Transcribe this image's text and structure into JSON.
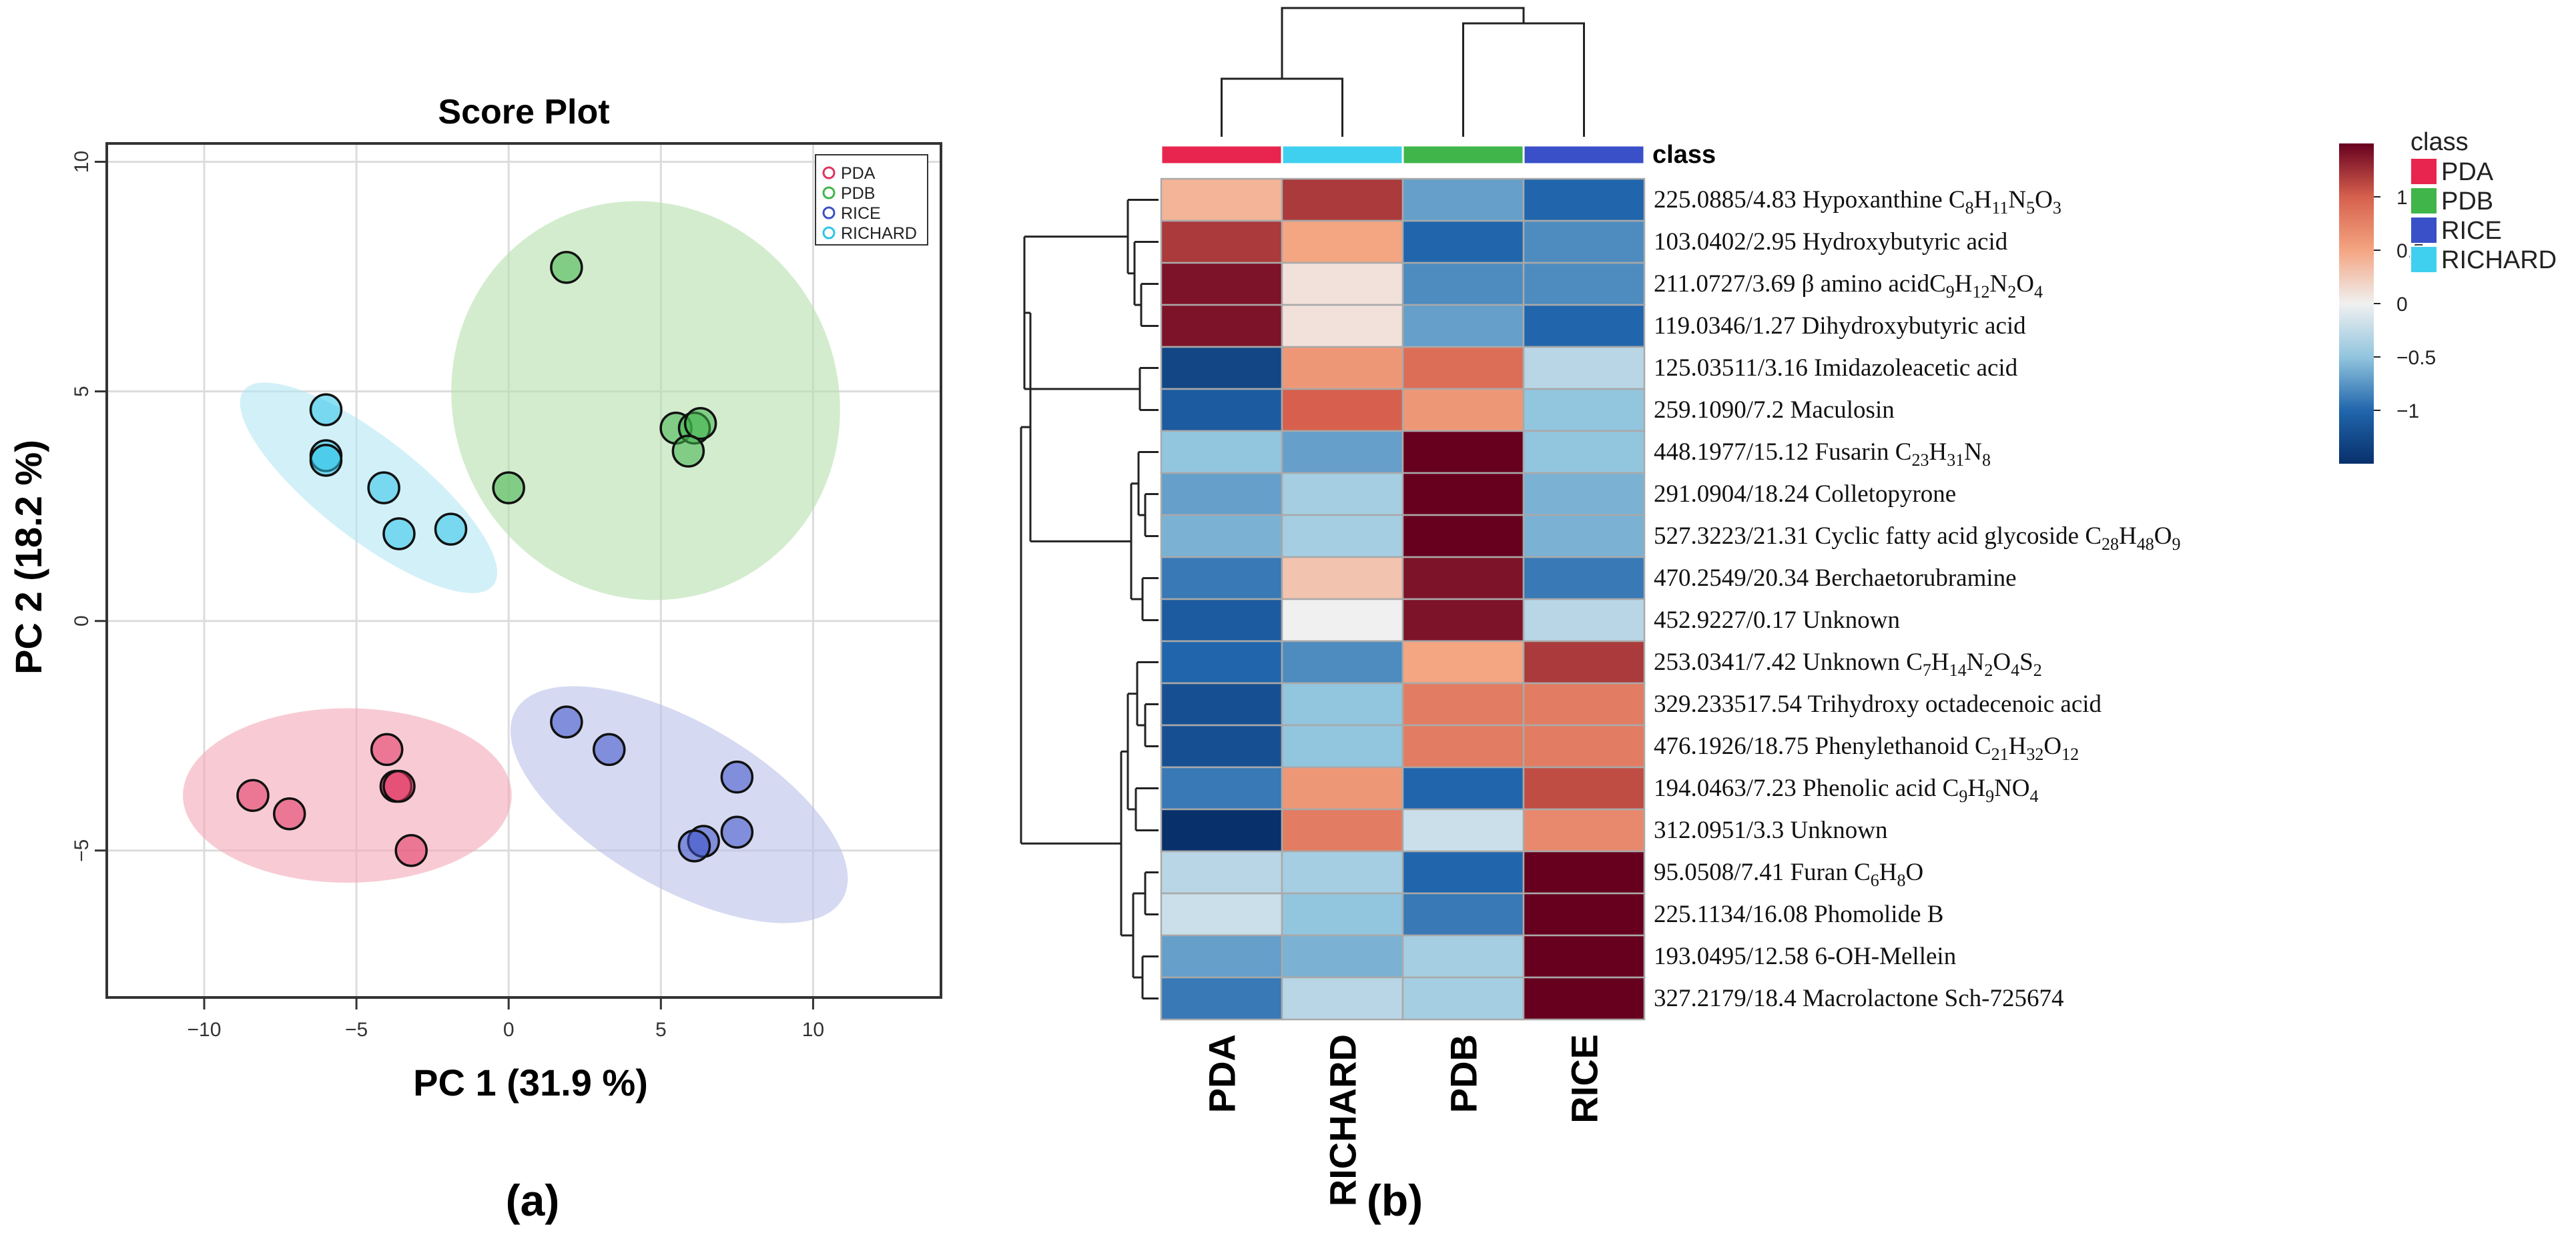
{
  "panel_labels": {
    "a": "(a)",
    "b": "(b)"
  },
  "chart_data": [
    {
      "type": "scatter",
      "title": "Score Plot",
      "xlabel": "PC 1 (31.9 %)",
      "ylabel": "PC 2 (18.2 %)",
      "xlim": [
        -13.2,
        14.2
      ],
      "ylim": [
        -8.2,
        10.4
      ],
      "xticks": [
        -10,
        -5,
        0,
        5,
        10
      ],
      "yticks": [
        -5,
        0,
        5,
        10
      ],
      "tick_labels": {
        "x": [
          "−10",
          "−5",
          "0",
          "5",
          "10"
        ],
        "y": [
          "−5",
          "0",
          "5",
          "10"
        ]
      },
      "grid": true,
      "legend_position": "top-right",
      "series": [
        {
          "name": "PDA",
          "color": "#e0335e",
          "fill": "#f4a8b7",
          "points": [
            [
              -8.4,
              -3.8
            ],
            [
              -7.2,
              -4.2
            ],
            [
              -4.0,
              -2.8
            ],
            [
              -3.7,
              -3.6
            ],
            [
              -3.6,
              -3.6
            ],
            [
              -3.2,
              -5.0
            ]
          ],
          "ellipse": {
            "cx": -5.3,
            "cy": -3.8,
            "rx": 5.4,
            "ry": 1.9,
            "angle": 0
          }
        },
        {
          "name": "PDB",
          "color": "#3fb54a",
          "fill": "#b6dfae",
          "points": [
            [
              1.9,
              7.7
            ],
            [
              5.5,
              4.2
            ],
            [
              6.1,
              4.2
            ],
            [
              6.3,
              4.3
            ],
            [
              5.9,
              3.7
            ],
            [
              0.0,
              2.9
            ]
          ],
          "ellipse": {
            "cx": 4.5,
            "cy": 4.8,
            "rx": 6.3,
            "ry": 4.4,
            "angle": 30
          }
        },
        {
          "name": "RICE",
          "color": "#3a50c8",
          "fill": "#b9bfe8",
          "points": [
            [
              1.9,
              -2.2
            ],
            [
              3.3,
              -2.8
            ],
            [
              7.5,
              -3.4
            ],
            [
              7.5,
              -4.6
            ],
            [
              6.4,
              -4.8
            ],
            [
              6.1,
              -4.9
            ]
          ],
          "ellipse": {
            "cx": 5.6,
            "cy": -4.0,
            "rx": 6.2,
            "ry": 1.8,
            "angle": -30
          }
        },
        {
          "name": "RICHARD",
          "color": "#2cc4e8",
          "fill": "#b4e6f3",
          "points": [
            [
              -6.0,
              4.6
            ],
            [
              -6.0,
              3.6
            ],
            [
              -6.0,
              3.5
            ],
            [
              -4.1,
              2.9
            ],
            [
              -3.6,
              1.9
            ],
            [
              -1.9,
              2.0
            ]
          ],
          "ellipse": {
            "cx": -4.6,
            "cy": 2.9,
            "rx": 5.2,
            "ry": 1.1,
            "angle": -38
          }
        }
      ]
    },
    {
      "type": "heatmap",
      "column_labels": [
        "PDA",
        "RICHARD",
        "PDB",
        "RICE"
      ],
      "class_header": "class",
      "class_colors": [
        "#e8254e",
        "#3fd0f0",
        "#3fb54a",
        "#3a50c8"
      ],
      "row_labels": [
        {
          "text": "225.0885/4.83 Hypoxanthine C",
          "sub": [
            [
              "8",
              "H"
            ],
            [
              "11",
              "N"
            ],
            [
              "5",
              "O"
            ],
            [
              "3",
              ""
            ]
          ]
        },
        {
          "text": "103.0402/2.95 Hydroxybutyric acid",
          "sub": []
        },
        {
          "text": "211.0727/3.69 β amino acidC",
          "sub": [
            [
              "9",
              "H"
            ],
            [
              "12",
              "N"
            ],
            [
              "2",
              "O"
            ],
            [
              "4",
              ""
            ]
          ]
        },
        {
          "text": "119.0346/1.27 Dihydroxybutyric acid",
          "sub": []
        },
        {
          "text": "125.03511/3.16 Imidazoleacetic acid",
          "sub": []
        },
        {
          "text": "259.1090/7.2 Maculosin",
          "sub": []
        },
        {
          "text": "448.1977/15.12 Fusarin C",
          "sub": [
            [
              "23",
              "H"
            ],
            [
              "31",
              "N"
            ],
            [
              "8",
              ""
            ]
          ]
        },
        {
          "text": "291.0904/18.24 Colletopyrone",
          "sub": []
        },
        {
          "text": "527.3223/21.31 Cyclic fatty acid glycoside C",
          "sub": [
            [
              "28",
              "H"
            ],
            [
              "48",
              "O"
            ],
            [
              "9",
              ""
            ]
          ]
        },
        {
          "text": "470.2549/20.34 Berchaetorubramine",
          "sub": []
        },
        {
          "text": "452.9227/0.17 Unknown",
          "sub": []
        },
        {
          "text": "253.0341/7.42 Unknown C",
          "sub": [
            [
              "7",
              "H"
            ],
            [
              "14",
              "N"
            ],
            [
              "2",
              "O"
            ],
            [
              "4",
              "S"
            ],
            [
              "2",
              ""
            ]
          ]
        },
        {
          "text": "329.233517.54 Trihydroxy octadecenoic acid",
          "sub": []
        },
        {
          "text": "476.1926/18.75 Phenylethanoid C",
          "sub": [
            [
              "21",
              "H"
            ],
            [
              "32",
              "O"
            ],
            [
              "12",
              ""
            ]
          ]
        },
        {
          "text": "194.0463/7.23 Phenolic acid C",
          "sub": [
            [
              "9",
              "H"
            ],
            [
              "9",
              "NO"
            ],
            [
              "4",
              ""
            ]
          ]
        },
        {
          "text": "312.0951/3.3 Unknown",
          "sub": []
        },
        {
          "text": "95.0508/7.41 Furan C",
          "sub": [
            [
              "6",
              "H"
            ],
            [
              "8",
              "O"
            ]
          ]
        },
        {
          "text": "225.1134/16.08 Phomolide B",
          "sub": []
        },
        {
          "text": "193.0495/12.58 6-OH-Mellein",
          "sub": []
        },
        {
          "text": "327.2179/18.4 Macrolactone Sch-725674",
          "sub": []
        }
      ],
      "values": [
        [
          0.4,
          1.2,
          -0.7,
          -1.0
        ],
        [
          1.2,
          0.5,
          -1.0,
          -0.8
        ],
        [
          1.4,
          0.1,
          -0.8,
          -0.8
        ],
        [
          1.4,
          0.1,
          -0.7,
          -1.0
        ],
        [
          -1.3,
          0.6,
          0.9,
          -0.3
        ],
        [
          -1.1,
          1.0,
          0.6,
          -0.5
        ],
        [
          -0.5,
          -0.7,
          1.5,
          -0.5
        ],
        [
          -0.7,
          -0.4,
          1.5,
          -0.6
        ],
        [
          -0.6,
          -0.4,
          1.5,
          -0.6
        ],
        [
          -0.9,
          0.3,
          1.4,
          -0.9
        ],
        [
          -1.1,
          0.0,
          1.4,
          -0.3
        ],
        [
          -1.0,
          -0.8,
          0.5,
          1.2
        ],
        [
          -1.2,
          -0.5,
          0.8,
          0.8
        ],
        [
          -1.2,
          -0.5,
          0.8,
          0.8
        ],
        [
          -0.9,
          0.6,
          -1.0,
          1.1
        ],
        [
          -1.5,
          0.8,
          -0.2,
          0.7
        ],
        [
          -0.3,
          -0.4,
          -1.0,
          1.5
        ],
        [
          -0.2,
          -0.5,
          -0.9,
          1.5
        ],
        [
          -0.7,
          -0.6,
          -0.4,
          1.5
        ],
        [
          -0.9,
          -0.3,
          -0.4,
          1.5
        ]
      ],
      "scale": {
        "min": -1.5,
        "max": 1.5,
        "ticks": [
          1,
          0.5,
          0,
          -0.5,
          -1
        ],
        "tick_labels": [
          "1",
          "0.5",
          "0",
          "−0.5",
          "−1"
        ]
      },
      "legend_title": "class",
      "legend_items": [
        "PDA",
        "PDB",
        "RICE",
        "RICHARD"
      ],
      "legend_colors": [
        "#e8254e",
        "#3fb54a",
        "#3a50c8",
        "#3fd0f0"
      ]
    }
  ]
}
